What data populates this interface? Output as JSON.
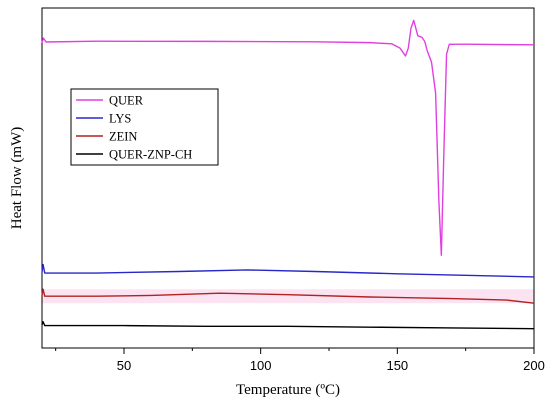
{
  "chart_data": {
    "type": "line",
    "xlabel": "Temperature (ºC)",
    "ylabel": "Heat Flow (mW)",
    "xlim": [
      20,
      200
    ],
    "x_ticks": [
      50,
      100,
      150,
      200
    ],
    "y_tick_labels_shown": false,
    "grid": false,
    "legend_position": "upper-left",
    "series": [
      {
        "name": "QUER",
        "color": "#e040e0",
        "points": [
          [
            20,
            3.25
          ],
          [
            20.5,
            3.55
          ],
          [
            21.5,
            3.3
          ],
          [
            40,
            3.35
          ],
          [
            80,
            3.34
          ],
          [
            120,
            3.31
          ],
          [
            140,
            3.26
          ],
          [
            148,
            3.18
          ],
          [
            151,
            2.9
          ],
          [
            153,
            2.4
          ],
          [
            154,
            2.9
          ],
          [
            155,
            4.2
          ],
          [
            156,
            4.7
          ],
          [
            157.5,
            3.7
          ],
          [
            159,
            3.6
          ],
          [
            160,
            3.35
          ],
          [
            161,
            2.7
          ],
          [
            162.5,
            2.0
          ],
          [
            164,
            0.0
          ],
          [
            165.2,
            -7.0
          ],
          [
            166.1,
            -10.5
          ],
          [
            167,
            -4.0
          ],
          [
            168,
            2.5
          ],
          [
            169,
            3.15
          ],
          [
            175,
            3.16
          ],
          [
            190,
            3.13
          ],
          [
            200,
            3.12
          ]
        ]
      },
      {
        "name": "LYS",
        "color": "#2828c8",
        "points": [
          [
            20,
            -11.6
          ],
          [
            20.4,
            -11.1
          ],
          [
            21,
            -11.65
          ],
          [
            40,
            -11.65
          ],
          [
            70,
            -11.55
          ],
          [
            95,
            -11.45
          ],
          [
            120,
            -11.55
          ],
          [
            150,
            -11.7
          ],
          [
            175,
            -11.8
          ],
          [
            200,
            -11.9
          ]
        ]
      },
      {
        "name": "ZEIN",
        "color": "#b22222",
        "points": [
          [
            20,
            -13.1
          ],
          [
            20.4,
            -12.7
          ],
          [
            21,
            -13.15
          ],
          [
            40,
            -13.15
          ],
          [
            60,
            -13.1
          ],
          [
            85,
            -12.95
          ],
          [
            110,
            -13.05
          ],
          [
            140,
            -13.2
          ],
          [
            170,
            -13.3
          ],
          [
            190,
            -13.4
          ],
          [
            200,
            -13.6
          ]
        ]
      },
      {
        "name": "QUER-ZNP-CH",
        "color": "#000000",
        "points": [
          [
            20,
            -15.0
          ],
          [
            20.4,
            -14.8
          ],
          [
            21,
            -15.05
          ],
          [
            50,
            -15.05
          ],
          [
            80,
            -15.1
          ],
          [
            110,
            -15.1
          ],
          [
            140,
            -15.15
          ],
          [
            170,
            -15.2
          ],
          [
            200,
            -15.25
          ]
        ]
      }
    ]
  }
}
